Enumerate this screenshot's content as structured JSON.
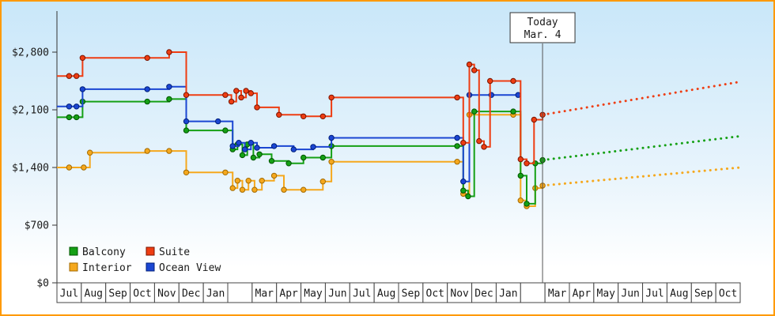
{
  "chart_data": {
    "type": "line",
    "description": "Cruise cabin price history by category with dotted price forecast after today",
    "y_axis": {
      "ticks": [
        0,
        700,
        1400,
        2100,
        2800
      ],
      "tick_labels": [
        "$0",
        "$700",
        "$1,400",
        "$2,100",
        "$2,800"
      ],
      "max": 2800
    },
    "x_axis": {
      "months": [
        "Jul",
        "Aug",
        "Sep",
        "Oct",
        "Nov",
        "Dec",
        "Jan",
        "",
        "Mar",
        "Apr",
        "May",
        "Jun",
        "Jul",
        "Aug",
        "Sep",
        "Oct",
        "Nov",
        "Dec",
        "Jan",
        "",
        "Mar",
        "Apr",
        "May",
        "Jun",
        "Jul",
        "Aug",
        "Sep",
        "Oct"
      ]
    },
    "today": {
      "line1": "Today",
      "line2": "Mar. 4",
      "x_index": 19.4
    },
    "style": {
      "line_width": 2,
      "marker_radius": 3.2,
      "step_mode": "after",
      "grid": false,
      "legend_position": "bottom-left"
    },
    "series": [
      {
        "name": "Interior",
        "color": "#f5a81d",
        "dark": "#a36a00",
        "points": [
          [
            0,
            1400
          ],
          [
            0.6,
            1400
          ],
          [
            0.85,
            1580
          ],
          [
            3.2,
            1600
          ],
          [
            4.1,
            1600
          ],
          [
            4.8,
            1340
          ],
          [
            6.4,
            1340
          ],
          [
            6.7,
            1150
          ],
          [
            6.9,
            1240
          ],
          [
            7.1,
            1130
          ],
          [
            7.35,
            1240
          ],
          [
            7.6,
            1130
          ],
          [
            7.9,
            1240
          ],
          [
            8.4,
            1300
          ],
          [
            8.8,
            1130
          ],
          [
            9.6,
            1130
          ],
          [
            10.4,
            1230
          ],
          [
            10.75,
            1470
          ],
          [
            15.9,
            1470
          ],
          [
            16.15,
            1080
          ],
          [
            16.4,
            2040
          ],
          [
            18.2,
            2040
          ],
          [
            18.5,
            1000
          ],
          [
            18.75,
            930
          ],
          [
            19.1,
            1150
          ],
          [
            19.4,
            1180
          ]
        ]
      },
      {
        "name": "Balcony",
        "color": "#15a015",
        "dark": "#005500",
        "points": [
          [
            0,
            2010
          ],
          [
            0.3,
            2010
          ],
          [
            0.55,
            2200
          ],
          [
            3.2,
            2200
          ],
          [
            4.1,
            2230
          ],
          [
            4.8,
            1850
          ],
          [
            6.4,
            1850
          ],
          [
            6.7,
            1620
          ],
          [
            6.9,
            1680
          ],
          [
            7.1,
            1550
          ],
          [
            7.3,
            1680
          ],
          [
            7.55,
            1520
          ],
          [
            7.8,
            1560
          ],
          [
            8.3,
            1480
          ],
          [
            9.0,
            1450
          ],
          [
            9.6,
            1520
          ],
          [
            10.4,
            1520
          ],
          [
            10.75,
            1660
          ],
          [
            15.9,
            1660
          ],
          [
            16.15,
            1120
          ],
          [
            16.35,
            1050
          ],
          [
            16.6,
            2080
          ],
          [
            18.2,
            2080
          ],
          [
            18.5,
            1300
          ],
          [
            18.75,
            960
          ],
          [
            19.1,
            1450
          ],
          [
            19.4,
            1490
          ]
        ]
      },
      {
        "name": "Ocean View",
        "color": "#1b46d2",
        "dark": "#001f7a",
        "points": [
          [
            0,
            2140
          ],
          [
            0.3,
            2140
          ],
          [
            0.55,
            2350
          ],
          [
            3.2,
            2350
          ],
          [
            4.1,
            2380
          ],
          [
            4.8,
            1960
          ],
          [
            6.1,
            1960
          ],
          [
            6.7,
            1660
          ],
          [
            6.95,
            1700
          ],
          [
            7.2,
            1620
          ],
          [
            7.45,
            1700
          ],
          [
            7.7,
            1640
          ],
          [
            8.4,
            1660
          ],
          [
            9.2,
            1620
          ],
          [
            10.0,
            1650
          ],
          [
            10.75,
            1760
          ],
          [
            15.9,
            1760
          ],
          [
            16.15,
            1230
          ],
          [
            16.4,
            2280
          ],
          [
            17.3,
            2280
          ],
          [
            18.4,
            2280
          ]
        ]
      },
      {
        "name": "Suite",
        "color": "#ee3d12",
        "dark": "#7a1400",
        "points": [
          [
            0,
            2510
          ],
          [
            0.3,
            2510
          ],
          [
            0.55,
            2730
          ],
          [
            3.2,
            2730
          ],
          [
            4.1,
            2800
          ],
          [
            4.8,
            2280
          ],
          [
            6.4,
            2280
          ],
          [
            6.65,
            2200
          ],
          [
            6.85,
            2330
          ],
          [
            7.05,
            2250
          ],
          [
            7.25,
            2330
          ],
          [
            7.45,
            2300
          ],
          [
            7.7,
            2130
          ],
          [
            8.6,
            2040
          ],
          [
            9.6,
            2020
          ],
          [
            10.4,
            2020
          ],
          [
            10.75,
            2250
          ],
          [
            15.9,
            2250
          ],
          [
            16.15,
            1700
          ],
          [
            16.4,
            2650
          ],
          [
            16.6,
            2580
          ],
          [
            16.8,
            1720
          ],
          [
            17.0,
            1650
          ],
          [
            17.25,
            2450
          ],
          [
            18.2,
            2450
          ],
          [
            18.5,
            1500
          ],
          [
            18.75,
            1450
          ],
          [
            19.05,
            1980
          ],
          [
            19.4,
            2040
          ]
        ]
      }
    ],
    "forecast": [
      {
        "series": "Suite",
        "from": [
          19.4,
          2040
        ],
        "to": [
          27.5,
          2440
        ]
      },
      {
        "series": "Balcony",
        "from": [
          19.4,
          1490
        ],
        "to": [
          27.5,
          1780
        ]
      },
      {
        "series": "Interior",
        "from": [
          19.4,
          1180
        ],
        "to": [
          27.5,
          1400
        ]
      }
    ]
  },
  "legend": {
    "items": [
      {
        "label": "Balcony",
        "color": "#15a015"
      },
      {
        "label": "Suite",
        "color": "#ee3d12"
      },
      {
        "label": "Interior",
        "color": "#f5a81d"
      },
      {
        "label": "Ocean View",
        "color": "#1b46d2"
      }
    ]
  },
  "frame": {
    "border_color": "#ff9900",
    "bg_top": "#c9e7f9",
    "bg_bottom": "#ffffff"
  }
}
